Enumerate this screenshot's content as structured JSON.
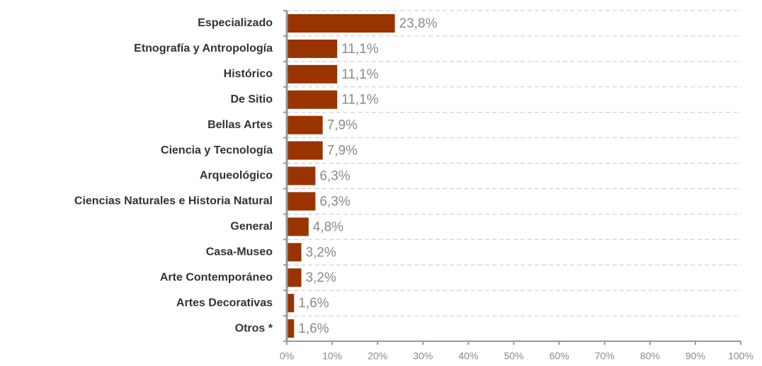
{
  "chart_data": {
    "type": "bar",
    "orientation": "horizontal",
    "categories": [
      "Especializado",
      "Etnografía y Antropología",
      "Histórico",
      "De Sitio",
      "Bellas Artes",
      "Ciencia y Tecnología",
      "Arqueológico",
      "Ciencias Naturales e Historia Natural",
      "General",
      "Casa-Museo",
      "Arte Contemporáneo",
      "Artes Decorativas",
      "Otros *"
    ],
    "values": [
      23.8,
      11.1,
      11.1,
      11.1,
      7.9,
      7.9,
      6.3,
      6.3,
      4.8,
      3.2,
      3.2,
      1.6,
      1.6
    ],
    "value_labels": [
      "23,8%",
      "11,1%",
      "11,1%",
      "11,1%",
      "7,9%",
      "7,9%",
      "6,3%",
      "6,3%",
      "4,8%",
      "3,2%",
      "3,2%",
      "1,6%",
      "1,6%"
    ],
    "color": "#993300",
    "xlim": [
      0,
      100
    ],
    "xticks": [
      {
        "value": 0,
        "label": "0%"
      },
      {
        "value": 10,
        "label": "10%"
      },
      {
        "value": 20,
        "label": "20%"
      },
      {
        "value": 30,
        "label": "30%"
      },
      {
        "value": 40,
        "label": "40%"
      },
      {
        "value": 50,
        "label": "50%"
      },
      {
        "value": 60,
        "label": "60%"
      },
      {
        "value": 70,
        "label": "70%"
      },
      {
        "value": 80,
        "label": "80%"
      },
      {
        "value": 90,
        "label": "90%"
      },
      {
        "value": 100,
        "label": "100%"
      }
    ]
  }
}
